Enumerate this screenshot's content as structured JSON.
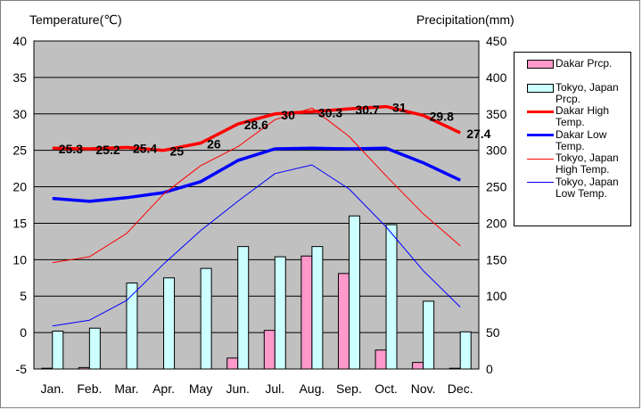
{
  "chart_data": {
    "type": "bar+line",
    "categories": [
      "Jan.",
      "Feb.",
      "Mar.",
      "Apr.",
      "May",
      "Jun.",
      "Jul.",
      "Aug.",
      "Sep.",
      "Oct.",
      "Nov.",
      "Dec."
    ],
    "y_left": {
      "label": "Temperature(℃)",
      "range": [
        -5,
        40
      ],
      "ticks": [
        -5,
        0,
        5,
        10,
        15,
        20,
        25,
        30,
        35,
        40
      ]
    },
    "y_right": {
      "label": "Precipitation(mm)",
      "range": [
        0,
        450
      ],
      "ticks": [
        0,
        50,
        100,
        150,
        200,
        250,
        300,
        350,
        400,
        450
      ]
    },
    "grid": "horizontal",
    "legend_position": "right",
    "bar_series": [
      {
        "name": "Dakar Prcp.",
        "color": "#ff99cc",
        "values": [
          1,
          2,
          0,
          0,
          0,
          15,
          53,
          155,
          131,
          26,
          9,
          1
        ]
      },
      {
        "name": "Tokyo, Japan Prcp.",
        "color": "#ccffff",
        "values": [
          52,
          56,
          118,
          125,
          138,
          168,
          154,
          168,
          210,
          198,
          93,
          51
        ]
      }
    ],
    "line_series": [
      {
        "name": "Dakar High Temp.",
        "color": "#ff0000",
        "width": "thick",
        "values": [
          25.3,
          25.2,
          25.4,
          25,
          26,
          28.6,
          30,
          30.3,
          30.7,
          31,
          29.8,
          27.4
        ],
        "labels": [
          "25.3",
          "25.2",
          "25.4",
          "25",
          "26",
          "28.6",
          "30",
          "30.3",
          "30.7",
          "31",
          "29.8",
          "27.4"
        ]
      },
      {
        "name": "Dakar Low Temp.",
        "color": "#0000ff",
        "width": "thick",
        "values": [
          18.4,
          18.0,
          18.5,
          19.2,
          20.7,
          23.6,
          25.2,
          25.3,
          25.2,
          25.3,
          23.3,
          20.9
        ]
      },
      {
        "name": "Tokyo, Japan High Temp.",
        "color": "#ff0000",
        "width": "thin",
        "values": [
          9.6,
          10.4,
          13.6,
          19.0,
          22.9,
          25.5,
          29.2,
          30.8,
          26.9,
          21.5,
          16.3,
          11.9
        ]
      },
      {
        "name": "Tokyo, Japan Low Temp.",
        "color": "#0000ff",
        "width": "thin",
        "values": [
          0.9,
          1.7,
          4.4,
          9.4,
          14.0,
          18.0,
          21.8,
          23.0,
          19.7,
          14.5,
          8.5,
          3.5
        ]
      }
    ]
  }
}
